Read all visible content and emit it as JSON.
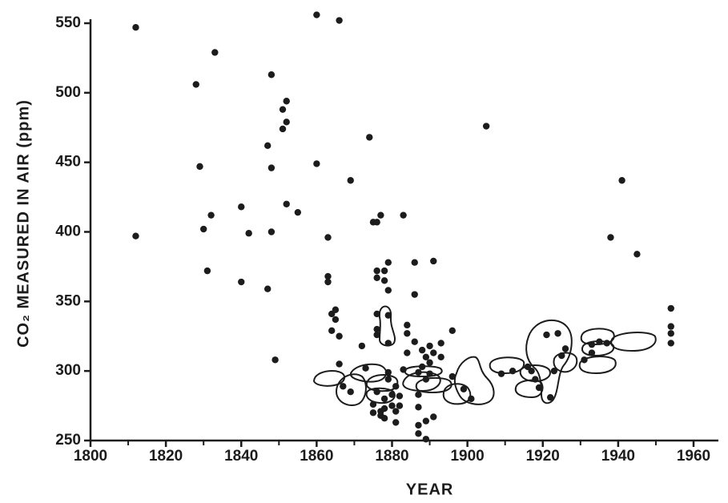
{
  "chart_data": {
    "type": "scatter",
    "title": "",
    "xlabel": "YEAR",
    "ylabel": "CO₂ MEASURED IN AIR (ppm)",
    "xlim": [
      1800,
      1970
    ],
    "ylim": [
      250,
      560
    ],
    "x_ticks": [
      1800,
      1820,
      1840,
      1860,
      1880,
      1900,
      1920,
      1940,
      1960
    ],
    "x_minor_ticks": [
      1810,
      1830,
      1850,
      1870,
      1890,
      1910,
      1930,
      1950
    ],
    "y_ticks": [
      250,
      300,
      350,
      400,
      450,
      500,
      550
    ],
    "grid": false,
    "legend": "none",
    "point_color": "#1c1c1c",
    "series": [
      {
        "values": [
          [
            1812,
            547
          ],
          [
            1812,
            397
          ],
          [
            1828,
            506
          ],
          [
            1829,
            447
          ],
          [
            1830,
            402
          ],
          [
            1831,
            372
          ],
          [
            1832,
            412
          ],
          [
            1833,
            529
          ],
          [
            1840,
            418
          ],
          [
            1840,
            364
          ],
          [
            1842,
            399
          ],
          [
            1847,
            462
          ],
          [
            1847,
            359
          ],
          [
            1848,
            513
          ],
          [
            1848,
            446
          ],
          [
            1848,
            400
          ],
          [
            1849,
            308
          ],
          [
            1851,
            488
          ],
          [
            1851,
            474
          ],
          [
            1852,
            494
          ],
          [
            1852,
            479
          ],
          [
            1852,
            420
          ],
          [
            1855,
            414
          ],
          [
            1860,
            449
          ],
          [
            1860,
            556
          ],
          [
            1866,
            552
          ],
          [
            1863,
            396
          ],
          [
            1863,
            368
          ],
          [
            1863,
            364
          ],
          [
            1864,
            341
          ],
          [
            1864,
            329
          ],
          [
            1865,
            344
          ],
          [
            1865,
            337
          ],
          [
            1866,
            325
          ],
          [
            1866,
            305
          ],
          [
            1869,
            437
          ],
          [
            1867,
            289
          ],
          [
            1869,
            285
          ],
          [
            1872,
            318
          ],
          [
            1873,
            302
          ],
          [
            1874,
            468
          ],
          [
            1875,
            407
          ],
          [
            1876,
            407
          ],
          [
            1877,
            412
          ],
          [
            1876,
            372
          ],
          [
            1876,
            367
          ],
          [
            1876,
            341
          ],
          [
            1876,
            330
          ],
          [
            1876,
            326
          ],
          [
            1878,
            372
          ],
          [
            1878,
            365
          ],
          [
            1879,
            378
          ],
          [
            1879,
            358
          ],
          [
            1879,
            340
          ],
          [
            1879,
            320
          ],
          [
            1879,
            299
          ],
          [
            1879,
            294
          ],
          [
            1875,
            276
          ],
          [
            1875,
            270
          ],
          [
            1876,
            285
          ],
          [
            1877,
            271
          ],
          [
            1877,
            268
          ],
          [
            1878,
            280
          ],
          [
            1878,
            273
          ],
          [
            1878,
            266
          ],
          [
            1880,
            283
          ],
          [
            1880,
            275
          ],
          [
            1881,
            289
          ],
          [
            1881,
            271
          ],
          [
            1881,
            263
          ],
          [
            1883,
            412
          ],
          [
            1884,
            333
          ],
          [
            1884,
            327
          ],
          [
            1884,
            313
          ],
          [
            1883,
            301
          ],
          [
            1882,
            282
          ],
          [
            1882,
            275
          ],
          [
            1886,
            378
          ],
          [
            1886,
            355
          ],
          [
            1886,
            321
          ],
          [
            1887,
            299
          ],
          [
            1887,
            283
          ],
          [
            1887,
            274
          ],
          [
            1887,
            261
          ],
          [
            1887,
            255
          ],
          [
            1888,
            315
          ],
          [
            1888,
            303
          ],
          [
            1889,
            310
          ],
          [
            1889,
            294
          ],
          [
            1889,
            264
          ],
          [
            1889,
            251
          ],
          [
            1890,
            318
          ],
          [
            1890,
            306
          ],
          [
            1890,
            298
          ],
          [
            1891,
            379
          ],
          [
            1891,
            313
          ],
          [
            1891,
            267
          ],
          [
            1893,
            320
          ],
          [
            1893,
            310
          ],
          [
            1896,
            329
          ],
          [
            1896,
            296
          ],
          [
            1899,
            287
          ],
          [
            1901,
            280
          ],
          [
            1905,
            476
          ],
          [
            1909,
            298
          ],
          [
            1912,
            300
          ],
          [
            1916,
            303
          ],
          [
            1917,
            300
          ],
          [
            1918,
            294
          ],
          [
            1919,
            288
          ],
          [
            1921,
            326
          ],
          [
            1922,
            281
          ],
          [
            1923,
            300
          ],
          [
            1924,
            327
          ],
          [
            1925,
            311
          ],
          [
            1926,
            316
          ],
          [
            1931,
            308
          ],
          [
            1933,
            313
          ],
          [
            1933,
            319
          ],
          [
            1935,
            321
          ],
          [
            1937,
            320
          ],
          [
            1938,
            396
          ],
          [
            1941,
            437
          ],
          [
            1945,
            384
          ],
          [
            1954,
            345
          ],
          [
            1954,
            332
          ],
          [
            1954,
            327
          ],
          [
            1954,
            320
          ]
        ]
      }
    ]
  }
}
